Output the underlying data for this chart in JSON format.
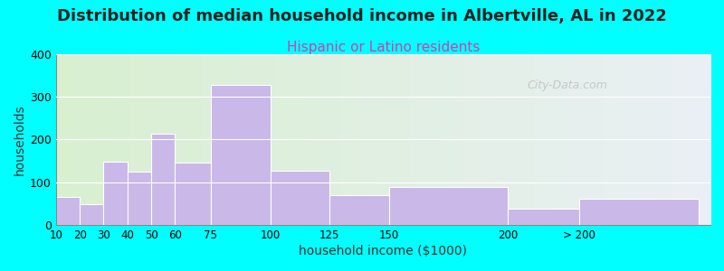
{
  "title": "Distribution of median household income in Albertville, AL in 2022",
  "subtitle": "Hispanic or Latino residents",
  "xlabel": "household income ($1000)",
  "ylabel": "households",
  "bar_lefts": [
    10,
    20,
    30,
    40,
    50,
    60,
    75,
    100,
    125,
    150,
    200,
    230
  ],
  "bar_widths": [
    10,
    10,
    10,
    10,
    10,
    15,
    25,
    25,
    25,
    50,
    30,
    50
  ],
  "bar_values": [
    65,
    48,
    148,
    125,
    213,
    145,
    328,
    128,
    70,
    88,
    37,
    62
  ],
  "bar_color": "#c9b8e8",
  "bar_edgecolor": "#ffffff",
  "background_color": "#00ffff",
  "plot_bg_left_color": "#d8f0d0",
  "plot_bg_right_color": "#eaeff5",
  "ylim": [
    0,
    400
  ],
  "yticks": [
    0,
    100,
    200,
    300,
    400
  ],
  "xtick_positions": [
    10,
    20,
    30,
    40,
    50,
    60,
    75,
    100,
    125,
    150,
    200,
    230
  ],
  "xtick_labels": [
    "10",
    "20",
    "30",
    "40",
    "50",
    "60",
    "75",
    "100",
    "125",
    "150",
    "200",
    "> 200"
  ],
  "xlim": [
    10,
    285
  ],
  "title_fontsize": 13,
  "subtitle_fontsize": 11,
  "subtitle_color": "#cc44aa",
  "axis_label_fontsize": 10,
  "watermark_text": "City-Data.com",
  "watermark_color": "#aaaaaa"
}
